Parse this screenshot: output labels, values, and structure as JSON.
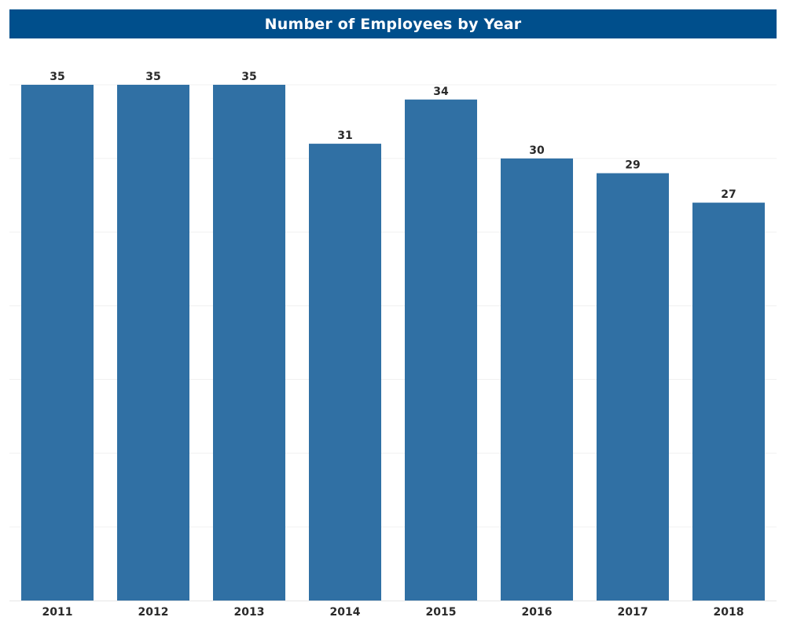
{
  "chart_data": {
    "type": "bar",
    "title": "Number of Employees by Year",
    "xlabel": "",
    "ylabel": "",
    "categories": [
      "2011",
      "2012",
      "2013",
      "2014",
      "2015",
      "2016",
      "2017",
      "2018"
    ],
    "values": [
      35,
      35,
      35,
      31,
      34,
      30,
      29,
      27
    ],
    "ylim": [
      0,
      35
    ],
    "grid": true,
    "legend": "none",
    "data_labels": true
  },
  "colors": {
    "title_background": "#004f8c",
    "title_text": "#ffffff",
    "bar": "#3070a4",
    "gridline": "#f0f0f0"
  }
}
